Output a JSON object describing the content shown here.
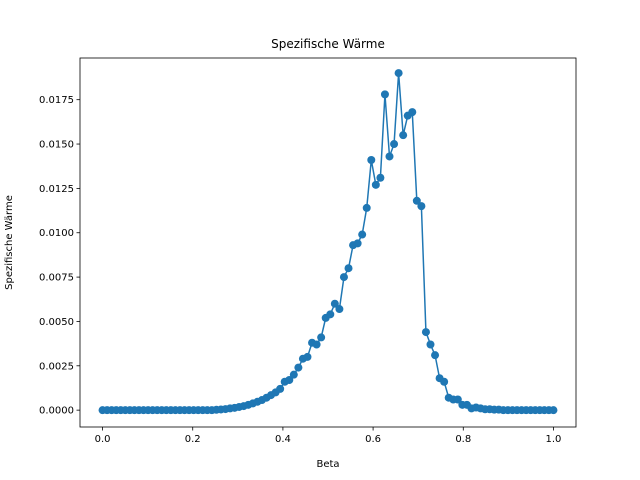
{
  "chart_data": {
    "type": "line",
    "title": "Spezifische Wärme",
    "xlabel": "Beta",
    "ylabel": "Spezifische Wärme",
    "xlim": [
      -0.05,
      1.05
    ],
    "ylim": [
      -0.00095,
      0.01985
    ],
    "xticks": [
      0.0,
      0.2,
      0.4,
      0.6,
      0.8,
      1.0
    ],
    "xtick_labels": [
      "0.0",
      "0.2",
      "0.4",
      "0.6",
      "0.8",
      "1.0"
    ],
    "yticks": [
      0.0,
      0.0025,
      0.005,
      0.0075,
      0.01,
      0.0125,
      0.015,
      0.0175
    ],
    "ytick_labels": [
      "0.0000",
      "0.0025",
      "0.0050",
      "0.0075",
      "0.0100",
      "0.0125",
      "0.0150",
      "0.0175"
    ],
    "grid": false,
    "color": "#1f77b4",
    "series": [
      {
        "x": [
          0.0,
          0.0101,
          0.0202,
          0.0303,
          0.0404,
          0.0505,
          0.0606,
          0.0707,
          0.0808,
          0.0909,
          0.101,
          0.1111,
          0.1212,
          0.1313,
          0.1414,
          0.1515,
          0.1616,
          0.1717,
          0.1818,
          0.1919,
          0.202,
          0.2121,
          0.2222,
          0.2323,
          0.2424,
          0.2525,
          0.2626,
          0.2727,
          0.2828,
          0.2929,
          0.303,
          0.3131,
          0.3232,
          0.3333,
          0.3434,
          0.3535,
          0.3636,
          0.3737,
          0.3838,
          0.3939,
          0.404,
          0.4141,
          0.4242,
          0.4343,
          0.4444,
          0.4545,
          0.4646,
          0.4747,
          0.4848,
          0.4949,
          0.5051,
          0.5152,
          0.5253,
          0.5354,
          0.5455,
          0.5556,
          0.5657,
          0.5758,
          0.5859,
          0.596,
          0.6061,
          0.6162,
          0.6263,
          0.6364,
          0.6465,
          0.6566,
          0.6667,
          0.6768,
          0.6869,
          0.697,
          0.7071,
          0.7172,
          0.7273,
          0.7374,
          0.7475,
          0.7576,
          0.7677,
          0.7778,
          0.7879,
          0.798,
          0.8081,
          0.8182,
          0.8283,
          0.8384,
          0.8485,
          0.8586,
          0.8687,
          0.8788,
          0.8889,
          0.899,
          0.9091,
          0.9192,
          0.9293,
          0.9394,
          0.9495,
          0.9596,
          0.9697,
          0.9798,
          0.9899,
          1.0
        ],
        "values": [
          0.0,
          0.0,
          0.0,
          0.0,
          0.0,
          0.0,
          0.0,
          0.0,
          0.0,
          0.0,
          0.0,
          0.0,
          0.0,
          0.0,
          0.0,
          0.0,
          0.0,
          0.0,
          0.0,
          0.0,
          0.0,
          0.0,
          0.0,
          0.0,
          0.0,
          2e-05,
          4e-05,
          6e-05,
          0.0001,
          0.00013,
          0.00018,
          0.00023,
          0.0003,
          0.00038,
          0.00047,
          0.00057,
          0.0007,
          0.00085,
          0.001,
          0.0012,
          0.0016,
          0.0017,
          0.002,
          0.0024,
          0.0029,
          0.003,
          0.0038,
          0.0037,
          0.0041,
          0.0052,
          0.0054,
          0.006,
          0.0057,
          0.0075,
          0.008,
          0.0093,
          0.0094,
          0.0099,
          0.0114,
          0.0141,
          0.0127,
          0.0131,
          0.0178,
          0.0143,
          0.015,
          0.019,
          0.0155,
          0.0166,
          0.0168,
          0.0118,
          0.0115,
          0.0044,
          0.0037,
          0.0031,
          0.0018,
          0.0016,
          0.0007,
          0.0006,
          0.0006,
          0.0003,
          0.0003,
          0.0001,
          0.00015,
          0.0001,
          5e-05,
          5e-05,
          3e-05,
          3e-05,
          0.0,
          0.0,
          0.0,
          0.0,
          0.0,
          0.0,
          0.0,
          0.0,
          0.0,
          0.0,
          0.0,
          0.0
        ]
      }
    ]
  }
}
